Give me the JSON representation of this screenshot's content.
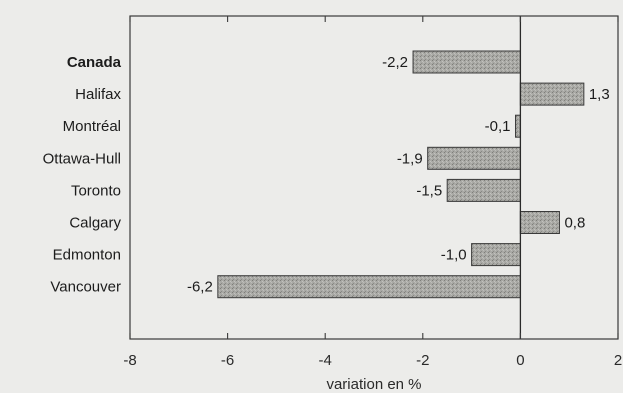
{
  "chart_data": {
    "type": "bar",
    "orientation": "horizontal",
    "categories": [
      "Canada",
      "Halifax",
      "Montréal",
      "Ottawa-Hull",
      "Toronto",
      "Calgary",
      "Edmonton",
      "Vancouver"
    ],
    "values": [
      -2.2,
      1.3,
      -0.1,
      -1.9,
      -1.5,
      0.8,
      -1.0,
      -6.2
    ],
    "value_labels": [
      "-2,2",
      "1,3",
      "-0,1",
      "-1,9",
      "-1,5",
      "0,8",
      "-1,0",
      "-6,2"
    ],
    "bold_categories": [
      "Canada"
    ],
    "xlabel": "variation en %",
    "ylabel": "",
    "title": "",
    "xlim": [
      -8,
      2
    ],
    "x_ticks": [
      -8,
      -6,
      -4,
      -2,
      0,
      2
    ],
    "x_tick_labels": [
      "-8",
      "-6",
      "-4",
      "-2",
      "0",
      "2"
    ],
    "grid": false,
    "colors": {
      "bar_fill": "#a7a7a3",
      "bar_fill_dark": "#8c8c88",
      "bar_stroke": "#3a3a3a",
      "zero_line": "#2a2a2a",
      "frame": "#3a3a3a"
    }
  }
}
